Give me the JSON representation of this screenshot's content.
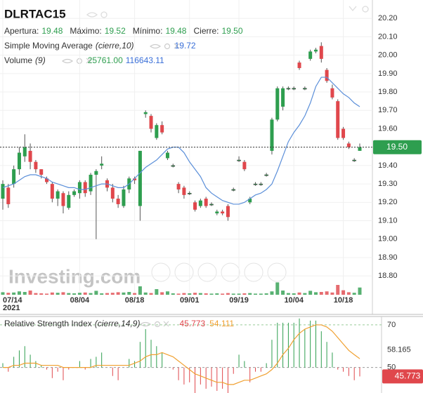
{
  "chart_data": [
    {
      "type": "candlestick",
      "symbol": "DLRTAC15",
      "stats": [
        {
          "label": "Apertura:",
          "value": "19.48"
        },
        {
          "label": "Máximo:",
          "value": "19.52"
        },
        {
          "label": "Mínimo:",
          "value": "19.48"
        },
        {
          "label": "Cierre:",
          "value": "19.50"
        }
      ],
      "categories": [
        "07/14",
        null,
        null,
        null,
        null,
        null,
        null,
        null,
        null,
        null,
        null,
        null,
        null,
        null,
        "08/04",
        null,
        null,
        null,
        null,
        null,
        null,
        null,
        null,
        null,
        "08/18",
        null,
        null,
        null,
        null,
        null,
        null,
        null,
        null,
        null,
        "09/01",
        null,
        null,
        null,
        null,
        null,
        null,
        null,
        null,
        "09/19",
        null,
        null,
        null,
        null,
        null,
        null,
        null,
        null,
        null,
        "10/04",
        null,
        null,
        null,
        null,
        null,
        null,
        null,
        null,
        "10/18",
        null,
        null,
        null
      ],
      "year_label": "2021",
      "open": [
        19.22,
        19.28,
        19.3,
        19.38,
        19.45,
        19.48,
        19.42,
        19.38,
        19.33,
        19.3,
        19.22,
        19.25,
        19.17,
        19.24,
        19.25,
        19.31,
        19.26,
        19.35,
        19.4,
        19.32,
        19.28,
        19.22,
        19.18,
        19.27,
        19.33,
        19.18,
        19.68,
        19.67,
        19.55,
        19.62,
        19.44,
        19.4,
        19.3,
        19.28,
        19.25,
        19.2,
        19.18,
        19.22,
        19.19,
        19.14,
        19.15,
        19.18,
        19.27,
        19.43,
        19.42,
        19.2,
        19.3,
        19.3,
        19.35,
        19.48,
        19.65,
        19.72,
        19.82,
        19.82,
        19.96,
        19.82,
        19.98,
        20.02,
        20.05,
        19.92,
        19.82,
        19.75,
        19.6,
        19.52,
        19.43,
        19.48
      ],
      "high": [
        19.32,
        19.3,
        19.4,
        19.5,
        19.57,
        19.52,
        19.43,
        19.38,
        19.34,
        19.31,
        19.27,
        19.26,
        19.26,
        19.27,
        19.32,
        19.32,
        19.36,
        19.38,
        19.45,
        19.33,
        19.3,
        19.24,
        19.29,
        19.34,
        19.34,
        19.48,
        19.7,
        19.68,
        19.63,
        19.64,
        19.48,
        19.41,
        19.31,
        19.29,
        19.26,
        19.21,
        19.22,
        19.23,
        19.2,
        19.16,
        19.16,
        19.19,
        19.28,
        19.45,
        19.43,
        19.23,
        19.31,
        19.31,
        19.36,
        19.66,
        19.83,
        19.83,
        19.83,
        19.83,
        19.97,
        19.83,
        20.03,
        20.04,
        20.07,
        19.93,
        19.84,
        19.76,
        19.61,
        19.53,
        19.44,
        19.52
      ],
      "low": [
        19.16,
        19.17,
        19.28,
        19.35,
        19.42,
        19.38,
        19.36,
        19.33,
        19.3,
        19.2,
        19.18,
        19.14,
        19.16,
        19.23,
        19.22,
        19.23,
        19.24,
        19.0,
        19.38,
        19.26,
        19.2,
        19.17,
        19.17,
        19.25,
        19.3,
        19.1,
        19.66,
        19.58,
        19.54,
        19.57,
        19.43,
        19.39,
        19.25,
        19.22,
        19.24,
        19.15,
        19.17,
        19.17,
        19.18,
        19.13,
        19.13,
        19.1,
        19.26,
        19.42,
        19.37,
        19.19,
        19.29,
        19.29,
        19.34,
        19.46,
        19.64,
        19.7,
        19.81,
        19.81,
        19.92,
        19.81,
        19.97,
        20.01,
        19.96,
        19.85,
        19.76,
        19.54,
        19.54,
        19.49,
        19.42,
        19.48
      ],
      "close": [
        19.3,
        19.19,
        19.38,
        19.47,
        19.5,
        19.42,
        19.38,
        19.35,
        19.31,
        19.22,
        19.26,
        19.18,
        19.24,
        19.26,
        19.31,
        19.25,
        19.35,
        19.37,
        19.41,
        19.28,
        19.22,
        19.19,
        19.27,
        19.33,
        19.32,
        19.48,
        19.69,
        19.6,
        19.62,
        19.58,
        19.47,
        19.4,
        19.27,
        19.24,
        19.25,
        19.16,
        19.21,
        19.18,
        19.19,
        19.15,
        19.14,
        19.12,
        19.27,
        19.43,
        19.38,
        19.22,
        19.3,
        19.3,
        19.35,
        19.65,
        19.82,
        19.82,
        19.82,
        19.82,
        19.93,
        19.82,
        20.02,
        20.03,
        19.98,
        19.86,
        19.77,
        19.55,
        19.55,
        19.5,
        19.43,
        19.5
      ],
      "up_color": "#2e9e4f",
      "down_color": "#e0474c",
      "ylim": [
        18.69,
        20.3
      ],
      "yticks": [
        {
          "value": 20.2,
          "label": "20.20"
        },
        {
          "value": 20.1,
          "label": "20.10"
        },
        {
          "value": 20.0,
          "label": "20.00"
        },
        {
          "value": 19.9,
          "label": "19.90"
        },
        {
          "value": 19.8,
          "label": "19.80"
        },
        {
          "value": 19.7,
          "label": "19.70"
        },
        {
          "value": 19.6,
          "label": "19.60"
        },
        {
          "value": 19.5,
          "label": "19.50"
        },
        {
          "value": 19.4,
          "label": "19.40"
        },
        {
          "value": 19.3,
          "label": "19.30"
        },
        {
          "value": 19.2,
          "label": "19.20"
        },
        {
          "value": 19.1,
          "label": "19.10"
        },
        {
          "value": 19.0,
          "label": "19.00"
        },
        {
          "value": 18.9,
          "label": "18.90"
        },
        {
          "value": 18.8,
          "label": "18.80"
        }
      ],
      "grid": true,
      "last_price": {
        "value": 19.5,
        "label": "19.50"
      },
      "sma": {
        "name": "Simple Moving Average",
        "params": "(cierre,10)",
        "value_label": "19.72",
        "color": "#5b8fd9",
        "values": [
          19.28,
          19.29,
          19.3,
          19.32,
          19.34,
          19.35,
          19.35,
          19.34,
          19.33,
          19.31,
          19.3,
          19.29,
          19.28,
          19.28,
          19.27,
          19.27,
          19.28,
          19.29,
          19.3,
          19.3,
          19.29,
          19.28,
          19.28,
          19.3,
          19.33,
          19.36,
          19.39,
          19.41,
          19.43,
          19.46,
          19.49,
          19.5,
          19.5,
          19.47,
          19.42,
          19.38,
          19.34,
          19.28,
          19.25,
          19.23,
          19.21,
          19.2,
          19.19,
          19.19,
          19.2,
          19.22,
          19.24,
          19.25,
          19.27,
          19.3,
          19.37,
          19.45,
          19.53,
          19.58,
          19.62,
          19.67,
          19.74,
          19.83,
          19.88,
          19.88,
          19.85,
          19.82,
          19.79,
          19.77,
          19.74,
          19.72
        ]
      },
      "volume": {
        "name": "Volume",
        "params": "(9)",
        "value_label": "25761.00",
        "avg_label": "116643.11",
        "value_color": "#2e9e4f",
        "avg_color": "#3a6fd8",
        "ylim": [
          0,
          60000
        ],
        "values": [
          9000,
          7000,
          8000,
          12000,
          10000,
          15000,
          6000,
          5000,
          4000,
          8000,
          7000,
          9000,
          6000,
          5000,
          7000,
          8000,
          6000,
          14000,
          5000,
          6000,
          7000,
          9000,
          8000,
          10000,
          6000,
          30000,
          8000,
          6000,
          20000,
          9000,
          12000,
          5000,
          4000,
          6000,
          5000,
          7000,
          6000,
          5000,
          4000,
          5000,
          4000,
          6000,
          4000,
          4000,
          5000,
          6000,
          4000,
          4000,
          5000,
          12000,
          44000,
          15000,
          6000,
          5000,
          8000,
          6000,
          14000,
          9000,
          10000,
          12000,
          8000,
          35000,
          16000,
          9000,
          7000,
          25761
        ]
      },
      "watermark": "Investing.com"
    },
    {
      "type": "rsi",
      "name": "Relative Strength Index",
      "params": "(cierre,14,9)",
      "value_label": "45.773",
      "signal_label": "54.111",
      "up_color": "#2e9e4f",
      "down_color": "#e0474c",
      "signal_color": "#f0a030",
      "values": [
        52,
        48,
        55,
        58,
        60,
        56,
        53,
        51,
        49,
        45,
        48,
        44,
        49,
        50,
        53,
        49,
        54,
        55,
        57,
        50,
        46,
        44,
        50,
        54,
        53,
        62,
        68,
        63,
        60,
        57,
        50,
        49,
        44,
        42,
        43,
        38,
        42,
        40,
        41,
        39,
        40,
        38,
        47,
        56,
        53,
        43,
        48,
        48,
        52,
        63,
        71,
        71,
        71,
        71,
        73,
        68,
        72,
        72,
        67,
        62,
        57,
        49,
        48,
        46,
        44,
        45.773
      ],
      "signal": [
        50,
        50,
        51,
        51,
        52,
        52,
        52,
        51,
        51,
        51,
        51,
        50,
        50,
        50,
        50,
        50,
        50,
        51,
        51,
        51,
        51,
        51,
        51,
        51,
        52,
        53,
        55,
        56,
        56,
        57,
        56,
        55,
        53,
        51,
        49,
        47,
        46,
        45,
        44,
        43,
        43,
        42,
        42,
        43,
        44,
        44,
        45,
        46,
        47,
        49,
        52,
        56,
        59,
        63,
        66,
        68,
        69,
        70,
        70,
        69,
        67,
        64,
        61,
        58,
        56,
        54.111
      ],
      "ylim": [
        38,
        73.6
      ],
      "yticks": [
        70,
        58.165,
        50
      ],
      "baseline": 50
    }
  ]
}
